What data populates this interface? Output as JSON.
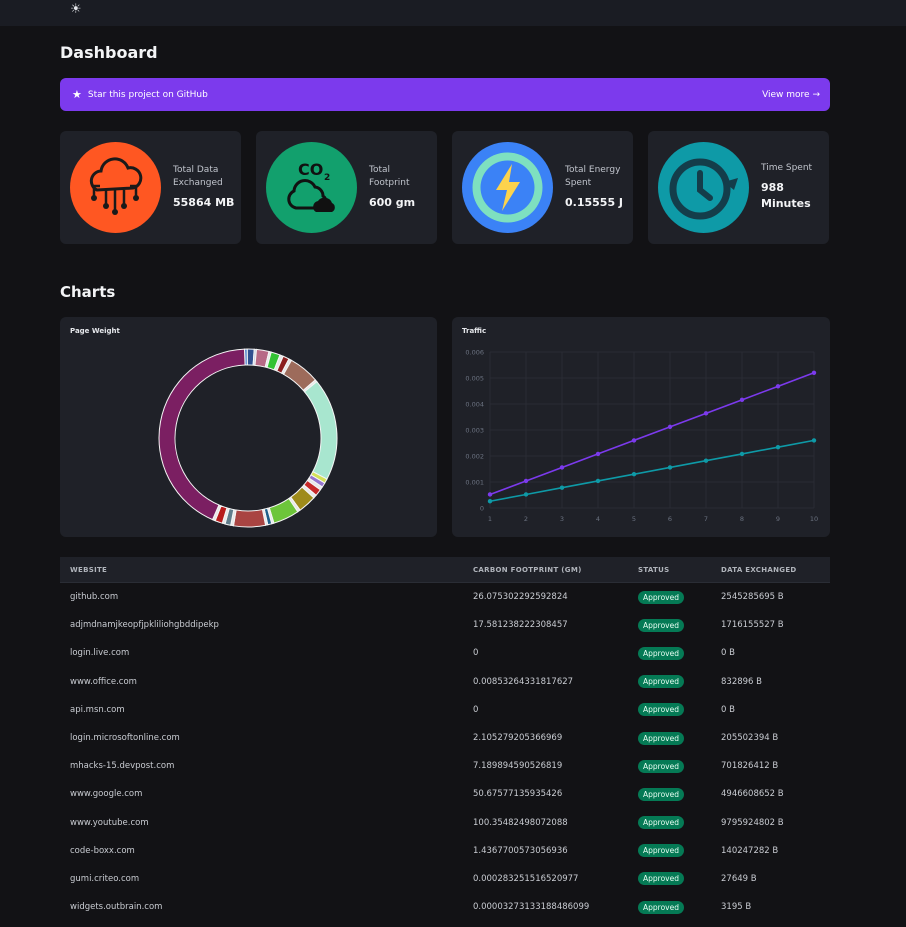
{
  "topbar": {
    "theme_icon": "sun-icon"
  },
  "page": {
    "title": "Dashboard",
    "charts_title": "Charts"
  },
  "banner": {
    "text": "Star this project on GitHub",
    "link": "View more →",
    "color": "#7c3aed"
  },
  "stats": [
    {
      "label": "Total Data Exchanged",
      "value": "55864 MB",
      "icon": "cloud-network-icon",
      "color": "#ff5722"
    },
    {
      "label": "Total Footprint",
      "value": "600 gm",
      "icon": "co2-cloud-icon",
      "color": "#12a06d"
    },
    {
      "label": "Total Energy Spent",
      "value": "0.15555 J",
      "icon": "energy-bolt-icon",
      "color": "#3b82f6"
    },
    {
      "label": "Time Spent",
      "value": "988 Minutes",
      "icon": "clock-icon",
      "color": "#0e9aa7"
    }
  ],
  "chart_data": [
    {
      "type": "pie",
      "title": "Page Weight",
      "donut": true,
      "segments": [
        {
          "value": 0.5,
          "color": "#5b8bd0"
        },
        {
          "value": 1.2,
          "color": "#2f4f8f"
        },
        {
          "value": 0.4,
          "color": "#cfd6e6"
        },
        {
          "value": 2.2,
          "color": "#b76a86"
        },
        {
          "value": 0.4,
          "color": "#e8e8e8"
        },
        {
          "value": 1.6,
          "color": "#33c233"
        },
        {
          "value": 0.6,
          "color": "#e8e8e8"
        },
        {
          "value": 1.1,
          "color": "#8b1e1e"
        },
        {
          "value": 0.5,
          "color": "#e8e8e8"
        },
        {
          "value": 5.4,
          "color": "#9d6b5b"
        },
        {
          "value": 0.4,
          "color": "#e8e8e8"
        },
        {
          "value": 18.0,
          "color": "#a8e6cf"
        },
        {
          "value": 0.8,
          "color": "#d4e157"
        },
        {
          "value": 0.8,
          "color": "#9575cd"
        },
        {
          "value": 0.6,
          "color": "#e8e8e8"
        },
        {
          "value": 1.2,
          "color": "#c62828"
        },
        {
          "value": 0.6,
          "color": "#e8e8e8"
        },
        {
          "value": 3.2,
          "color": "#9e8b1a"
        },
        {
          "value": 0.5,
          "color": "#e8e8e8"
        },
        {
          "value": 4.6,
          "color": "#6dc53a"
        },
        {
          "value": 0.4,
          "color": "#e8e8e8"
        },
        {
          "value": 0.7,
          "color": "#1e5f8a"
        },
        {
          "value": 0.4,
          "color": "#e8e8e8"
        },
        {
          "value": 5.6,
          "color": "#a94442"
        },
        {
          "value": 0.5,
          "color": "#e8e8e8"
        },
        {
          "value": 1.0,
          "color": "#607d8b"
        },
        {
          "value": 0.5,
          "color": "#e8e8e8"
        },
        {
          "value": 1.3,
          "color": "#b71c1c"
        },
        {
          "value": 0.5,
          "color": "#e8e8e8"
        },
        {
          "value": 41.6,
          "color": "#7b1f62"
        }
      ]
    },
    {
      "type": "line",
      "title": "Traffic",
      "x": [
        1,
        2,
        3,
        4,
        5,
        6,
        7,
        8,
        9,
        10
      ],
      "xlim": [
        1,
        10
      ],
      "ylim": [
        0,
        0.006
      ],
      "ytick_labels": [
        "0",
        "0.001",
        "0.002",
        "0.003",
        "0.004",
        "0.005",
        "0.006"
      ],
      "xtick_labels": [
        "1",
        "2",
        "3",
        "4",
        "5",
        "6",
        "7",
        "8",
        "9",
        "10"
      ],
      "grid": true,
      "series": [
        {
          "color": "#7c3aed",
          "values": [
            0.00052,
            0.00104,
            0.00156,
            0.00208,
            0.0026,
            0.00312,
            0.00364,
            0.00416,
            0.00468,
            0.0052
          ]
        },
        {
          "color": "#0e9aa7",
          "values": [
            0.00026,
            0.00052,
            0.00078,
            0.00104,
            0.0013,
            0.00156,
            0.00182,
            0.00208,
            0.00234,
            0.0026
          ]
        }
      ]
    }
  ],
  "table": {
    "headers": [
      "WEBSITE",
      "CARBON FOOTPRINT (GM)",
      "STATUS",
      "DATA EXCHANGED"
    ],
    "status_color": "#057a55",
    "rows": [
      {
        "website": "github.com",
        "carbon": "26.075302292592824",
        "status": "Approved",
        "data": "2545285695 B"
      },
      {
        "website": "adjmdnamjkeopfjpkliliohgbddipekp",
        "carbon": "17.581238222308457",
        "status": "Approved",
        "data": "1716155527 B"
      },
      {
        "website": "login.live.com",
        "carbon": "0",
        "status": "Approved",
        "data": "0 B"
      },
      {
        "website": "www.office.com",
        "carbon": "0.00853264331817627",
        "status": "Approved",
        "data": "832896 B"
      },
      {
        "website": "api.msn.com",
        "carbon": "0",
        "status": "Approved",
        "data": "0 B"
      },
      {
        "website": "login.microsoftonline.com",
        "carbon": "2.105279205366969",
        "status": "Approved",
        "data": "205502394 B"
      },
      {
        "website": "mhacks-15.devpost.com",
        "carbon": "7.189894590526819",
        "status": "Approved",
        "data": "701826412 B"
      },
      {
        "website": "www.google.com",
        "carbon": "50.67577135935426",
        "status": "Approved",
        "data": "4946608652 B"
      },
      {
        "website": "www.youtube.com",
        "carbon": "100.35482498072088",
        "status": "Approved",
        "data": "9795924802 B"
      },
      {
        "website": "code-boxx.com",
        "carbon": "1.4367700573056936",
        "status": "Approved",
        "data": "140247282 B"
      },
      {
        "website": "gumi.criteo.com",
        "carbon": "0.000283251516520977",
        "status": "Approved",
        "data": "27649 B"
      },
      {
        "website": "widgets.outbrain.com",
        "carbon": "0.0000327313318848609​9",
        "status": "Approved",
        "data": "3195 B"
      }
    ]
  }
}
